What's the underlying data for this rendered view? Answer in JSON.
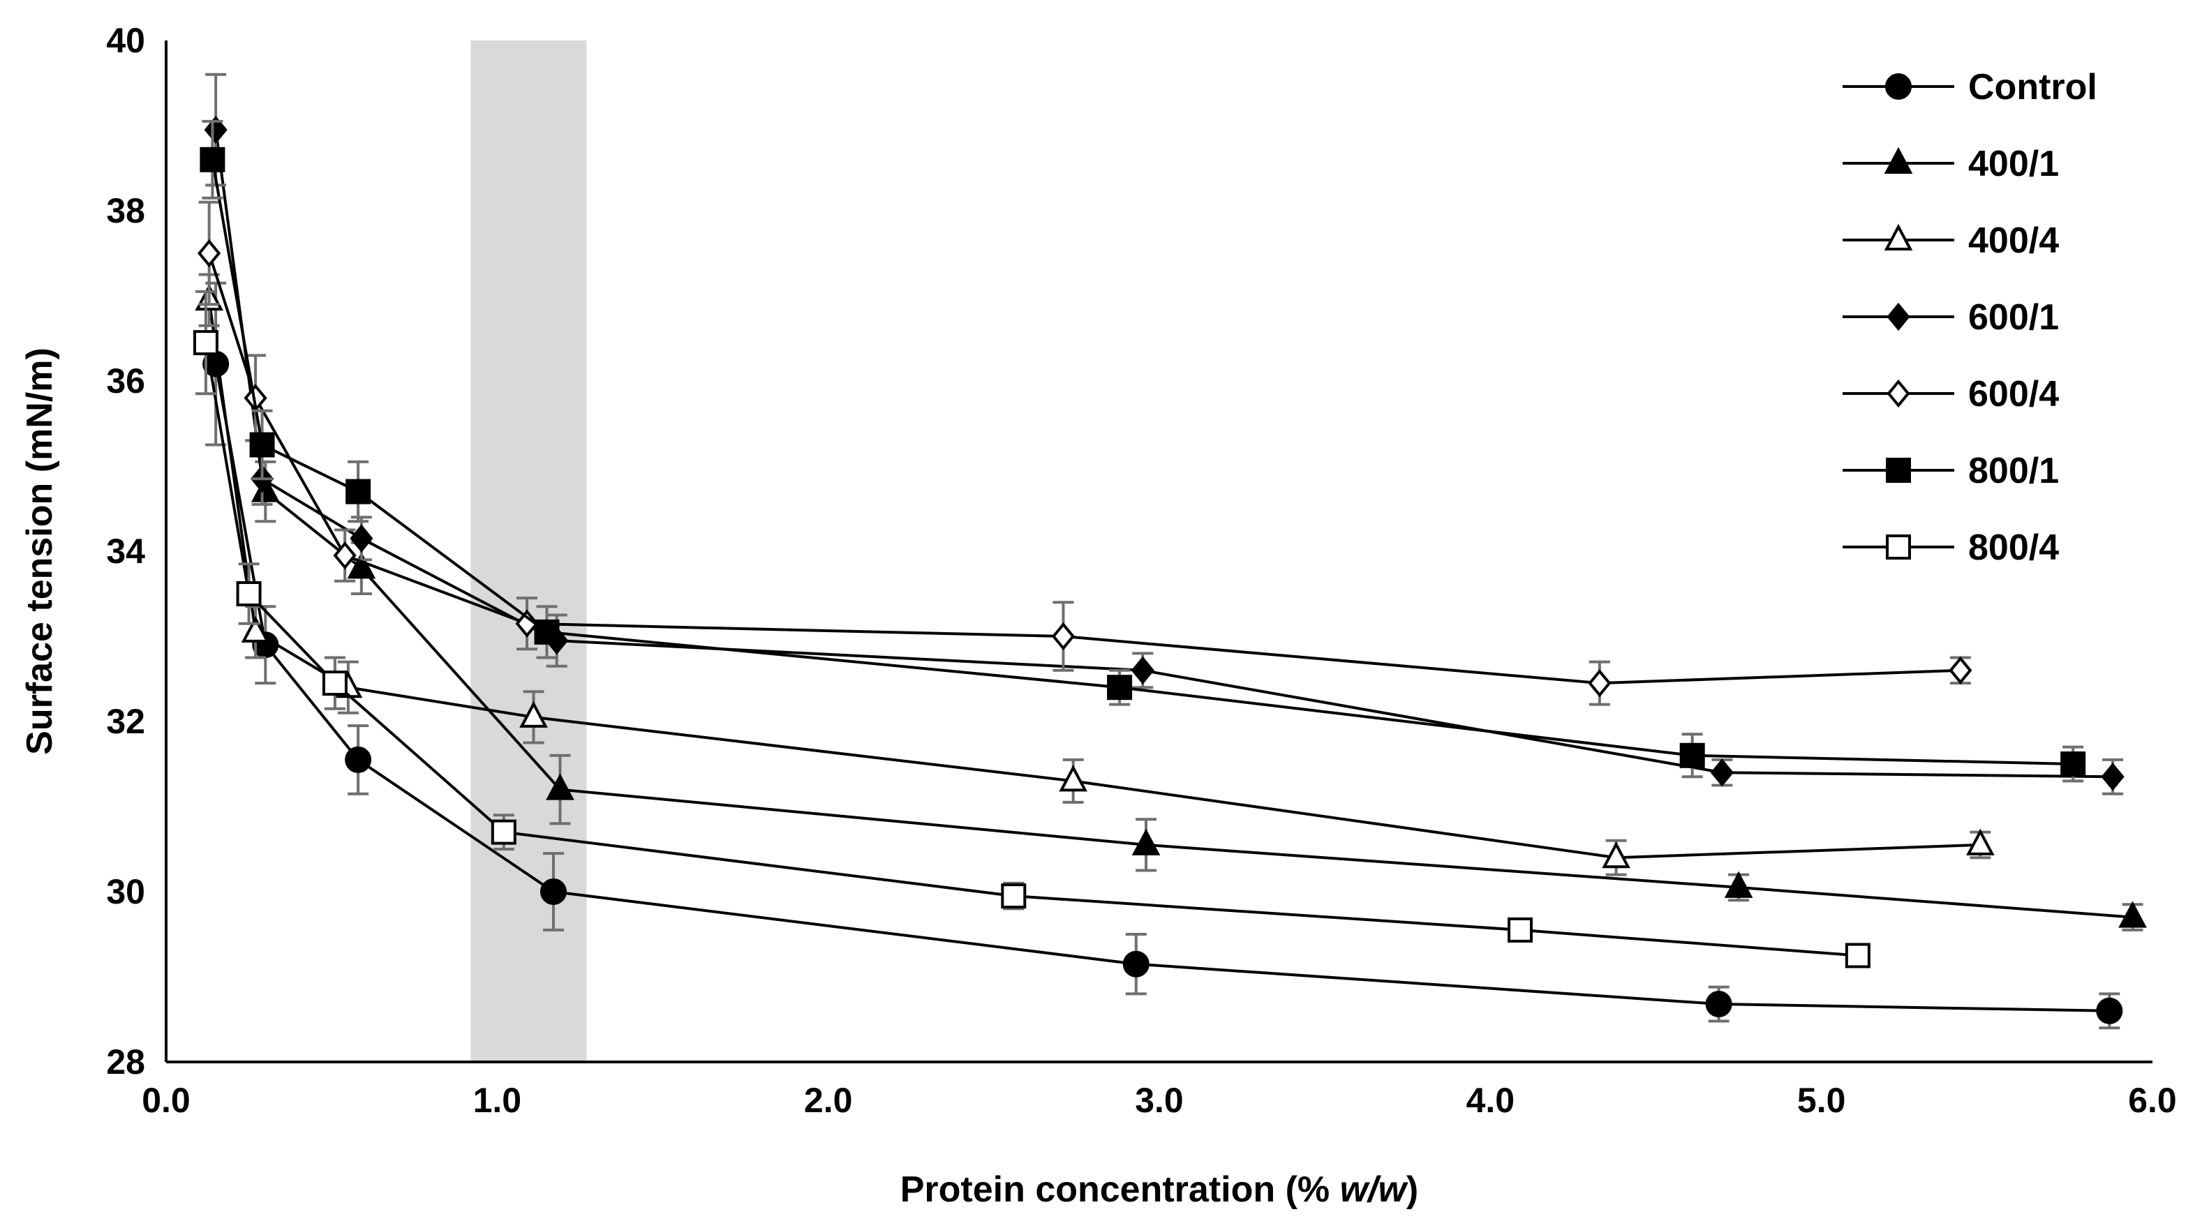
{
  "chart_data": {
    "type": "line",
    "title": "",
    "xlabel_parts": [
      "Protein concentration (% ",
      "w/w",
      ")"
    ],
    "ylabel": "Surface tension (mN/m)",
    "xlim": [
      0,
      6
    ],
    "ylim": [
      28,
      40
    ],
    "x_ticks": [
      0,
      1,
      2,
      3,
      4,
      5,
      6
    ],
    "x_tick_labels": [
      "0.0",
      "1.0",
      "2.0",
      "3.0",
      "4.0",
      "5.0",
      "6.0"
    ],
    "y_ticks": [
      28,
      30,
      32,
      34,
      36,
      38,
      40
    ],
    "y_tick_labels": [
      "28",
      "30",
      "32",
      "34",
      "36",
      "38",
      "40"
    ],
    "grid": false,
    "legend_position": "top-right",
    "shaded_region": {
      "x_from": 0.92,
      "x_to": 1.27,
      "color": "#d9d9d9"
    },
    "series": [
      {
        "name": "Control",
        "marker": "circle",
        "fill": "filled",
        "points": [
          {
            "x": 0.15,
            "y": 36.2,
            "err": 0.95
          },
          {
            "x": 0.3,
            "y": 32.9,
            "err": 0.45
          },
          {
            "x": 0.58,
            "y": 31.55,
            "err": 0.4
          },
          {
            "x": 1.17,
            "y": 30.0,
            "err": 0.45
          },
          {
            "x": 2.93,
            "y": 29.15,
            "err": 0.35
          },
          {
            "x": 4.69,
            "y": 28.68,
            "err": 0.2
          },
          {
            "x": 5.87,
            "y": 28.6,
            "err": 0.2
          }
        ]
      },
      {
        "name": "400/1",
        "marker": "triangle",
        "fill": "filled",
        "points": [
          {
            "x": 0.3,
            "y": 34.7,
            "err": 0.35
          },
          {
            "x": 0.59,
            "y": 33.8,
            "err": 0.3
          },
          {
            "x": 1.19,
            "y": 31.2,
            "err": 0.4
          },
          {
            "x": 2.96,
            "y": 30.55,
            "err": 0.3
          },
          {
            "x": 4.75,
            "y": 30.05,
            "err": 0.15
          },
          {
            "x": 5.94,
            "y": 29.7,
            "err": 0.15
          }
        ]
      },
      {
        "name": "400/4",
        "marker": "triangle",
        "fill": "open",
        "points": [
          {
            "x": 0.13,
            "y": 36.95,
            "err": 0.3
          },
          {
            "x": 0.27,
            "y": 33.05,
            "err": 0.3
          },
          {
            "x": 0.55,
            "y": 32.4,
            "err": 0.3
          },
          {
            "x": 1.11,
            "y": 32.05,
            "err": 0.3
          },
          {
            "x": 2.74,
            "y": 31.3,
            "err": 0.25
          },
          {
            "x": 4.38,
            "y": 30.4,
            "err": 0.2
          },
          {
            "x": 5.48,
            "y": 30.55,
            "err": 0.15
          }
        ]
      },
      {
        "name": "600/1",
        "marker": "diamond",
        "fill": "filled",
        "points": [
          {
            "x": 0.15,
            "y": 38.95,
            "err": 0.65
          },
          {
            "x": 0.29,
            "y": 34.85,
            "err": 0.3
          },
          {
            "x": 0.59,
            "y": 34.15,
            "err": 0.25
          },
          {
            "x": 1.18,
            "y": 32.95,
            "err": 0.3
          },
          {
            "x": 2.95,
            "y": 32.6,
            "err": 0.2
          },
          {
            "x": 4.7,
            "y": 31.4,
            "err": 0.15
          },
          {
            "x": 5.88,
            "y": 31.35,
            "err": 0.2
          }
        ]
      },
      {
        "name": "600/4",
        "marker": "diamond",
        "fill": "open",
        "points": [
          {
            "x": 0.13,
            "y": 37.5,
            "err": 0.6
          },
          {
            "x": 0.27,
            "y": 35.8,
            "err": 0.5
          },
          {
            "x": 0.54,
            "y": 33.95,
            "err": 0.3
          },
          {
            "x": 1.09,
            "y": 33.15,
            "err": 0.3
          },
          {
            "x": 2.71,
            "y": 33.0,
            "err": 0.4
          },
          {
            "x": 4.33,
            "y": 32.45,
            "err": 0.25
          },
          {
            "x": 5.42,
            "y": 32.6,
            "err": 0.15
          }
        ]
      },
      {
        "name": "800/1",
        "marker": "square",
        "fill": "filled",
        "points": [
          {
            "x": 0.14,
            "y": 38.6,
            "err": 0.45
          },
          {
            "x": 0.29,
            "y": 35.25,
            "err": 0.4
          },
          {
            "x": 0.58,
            "y": 34.7,
            "err": 0.35
          },
          {
            "x": 1.15,
            "y": 33.05,
            "err": 0.3
          },
          {
            "x": 2.88,
            "y": 32.4,
            "err": 0.2
          },
          {
            "x": 4.61,
            "y": 31.6,
            "err": 0.25
          },
          {
            "x": 5.76,
            "y": 31.5,
            "err": 0.2
          }
        ]
      },
      {
        "name": "800/4",
        "marker": "square",
        "fill": "open",
        "points": [
          {
            "x": 0.12,
            "y": 36.45,
            "err": 0.6
          },
          {
            "x": 0.25,
            "y": 33.5,
            "err": 0.35
          },
          {
            "x": 0.51,
            "y": 32.45,
            "err": 0.3
          },
          {
            "x": 1.02,
            "y": 30.7,
            "err": 0.2
          },
          {
            "x": 2.56,
            "y": 29.95,
            "err": 0.15
          },
          {
            "x": 4.09,
            "y": 29.55,
            "err": 0.1
          },
          {
            "x": 5.11,
            "y": 29.25,
            "err": 0.1
          }
        ]
      }
    ]
  }
}
